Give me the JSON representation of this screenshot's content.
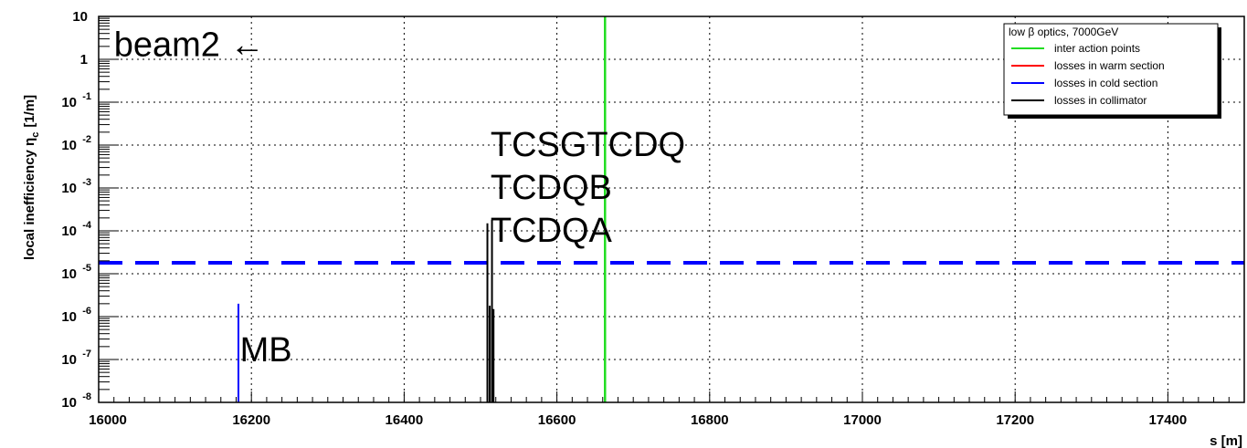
{
  "chart_data": {
    "type": "line",
    "x_label": "s [m]",
    "y_label_main": "local inefficiency η",
    "y_label_sub": "c",
    "y_label_unit": "[1/m]",
    "y_scale": "log",
    "xlim": [
      16000,
      17500
    ],
    "ylim": [
      1e-08,
      10
    ],
    "x_ticks": [
      16000,
      16200,
      16400,
      16600,
      16800,
      17000,
      17200,
      17400
    ],
    "x_tick_labels": [
      "16000",
      "16200",
      "16400",
      "16600",
      "16800",
      "17000",
      "17200",
      "17400"
    ],
    "y_ticks": [
      {
        "value": 10,
        "base": "10",
        "exp": ""
      },
      {
        "value": 1,
        "base": "1",
        "exp": ""
      },
      {
        "value": 0.1,
        "base": "10",
        "exp": "-1"
      },
      {
        "value": 0.01,
        "base": "10",
        "exp": "-2"
      },
      {
        "value": 0.001,
        "base": "10",
        "exp": "-3"
      },
      {
        "value": 0.0001,
        "base": "10",
        "exp": "-4"
      },
      {
        "value": 1e-05,
        "base": "10",
        "exp": "-5"
      },
      {
        "value": 1e-06,
        "base": "10",
        "exp": "-6"
      },
      {
        "value": 1e-07,
        "base": "10",
        "exp": "-7"
      },
      {
        "value": 1e-08,
        "base": "10",
        "exp": "-8"
      }
    ],
    "grid": true,
    "legend": {
      "position": "top-right",
      "header": "low β optics, 7000GeV",
      "entries": [
        {
          "label": "inter action points",
          "color": "#22dd22"
        },
        {
          "label": "losses in warm section",
          "color": "#ff0000"
        },
        {
          "label": "losses in cold section",
          "color": "#0000ff"
        },
        {
          "label": "losses in collimator",
          "color": "#000000"
        }
      ]
    },
    "threshold_line": {
      "y": 1.8e-05,
      "color": "#0000ff",
      "style": "dashed"
    },
    "interaction_points": [
      {
        "x": 16663,
        "color": "#22dd22"
      }
    ],
    "cold_losses": [
      {
        "x": 16183,
        "y": 2e-06,
        "color": "#0000ff"
      }
    ],
    "collimator_losses": [
      {
        "x": 16509,
        "y": 0.00015
      },
      {
        "x": 16512,
        "y": 1.8e-06
      },
      {
        "x": 16515,
        "y": 0.00018
      },
      {
        "x": 16517,
        "y": 1.5e-06
      }
    ],
    "annotations": [
      {
        "text": "beam2 ←",
        "x": 16020,
        "y": 1.2
      },
      {
        "text": "TCSGTCDQ",
        "x": 16513,
        "y": 0.0055
      },
      {
        "text": "TCDQB",
        "x": 16513,
        "y": 0.00055
      },
      {
        "text": "TCDQA",
        "x": 16513,
        "y": 5.5e-05
      },
      {
        "text": "MB",
        "x": 16185,
        "y": 9e-08
      }
    ]
  }
}
